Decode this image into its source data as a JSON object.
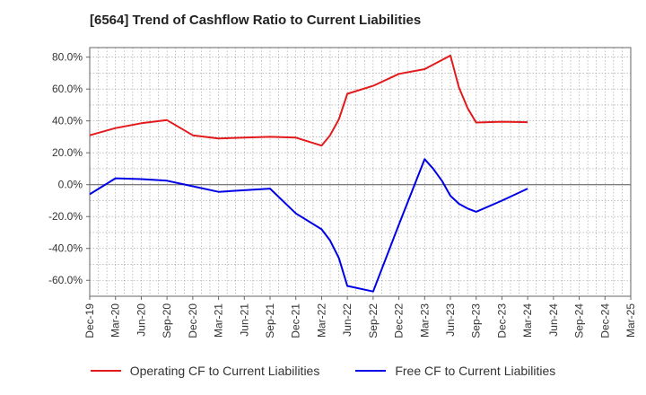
{
  "chart_data": {
    "type": "line",
    "title": "[6564]  Trend of Cashflow Ratio to Current Liabilities",
    "xlabel": "",
    "ylabel": "",
    "ylim": [
      -70,
      86
    ],
    "y_ticks": [
      "80.0%",
      "60.0%",
      "40.0%",
      "20.0%",
      "0.0%",
      "-20.0%",
      "-40.0%",
      "-60.0%"
    ],
    "y_tick_values": [
      80,
      60,
      40,
      20,
      0,
      -20,
      -40,
      -60
    ],
    "x_ticks": [
      "Dec-19",
      "Mar-20",
      "Jun-20",
      "Sep-20",
      "Dec-20",
      "Mar-21",
      "Jun-21",
      "Sep-21",
      "Dec-21",
      "Mar-22",
      "Jun-22",
      "Sep-22",
      "Dec-22",
      "Mar-23",
      "Jun-23",
      "Sep-23",
      "Dec-23",
      "Mar-24",
      "Jun-24",
      "Sep-24",
      "Dec-24",
      "Mar-25"
    ],
    "grid": true,
    "legend_position": "bottom",
    "series": [
      {
        "name": "Operating CF to Current Liabilities",
        "color": "#e31a1c",
        "x": [
          0,
          1,
          2,
          3,
          4,
          5,
          6,
          7,
          8,
          9,
          9.33,
          9.67,
          10,
          11,
          12,
          13,
          14,
          14.33,
          14.67,
          15,
          16,
          17
        ],
        "values": [
          31,
          35.5,
          38.5,
          40.5,
          31,
          29,
          29.5,
          30,
          29.5,
          24.5,
          31,
          41,
          57,
          62,
          69.5,
          72.5,
          81,
          61,
          48,
          39,
          39.5,
          39.2
        ]
      },
      {
        "name": "Free CF to Current Liabilities",
        "color": "#0000e6",
        "x": [
          0,
          1,
          2,
          3,
          4,
          5,
          6,
          7,
          8,
          9,
          9.33,
          9.67,
          10,
          11,
          12,
          13,
          13.33,
          13.67,
          14,
          14.33,
          14.67,
          15,
          16,
          17
        ],
        "values": [
          -6,
          4,
          3.5,
          2.5,
          -1,
          -4.5,
          -3.5,
          -2.5,
          -18,
          -28,
          -35,
          -46,
          -63.5,
          -67,
          -25,
          16,
          10,
          2.5,
          -7,
          -12,
          -15,
          -17,
          -10,
          -2.5
        ]
      }
    ]
  }
}
